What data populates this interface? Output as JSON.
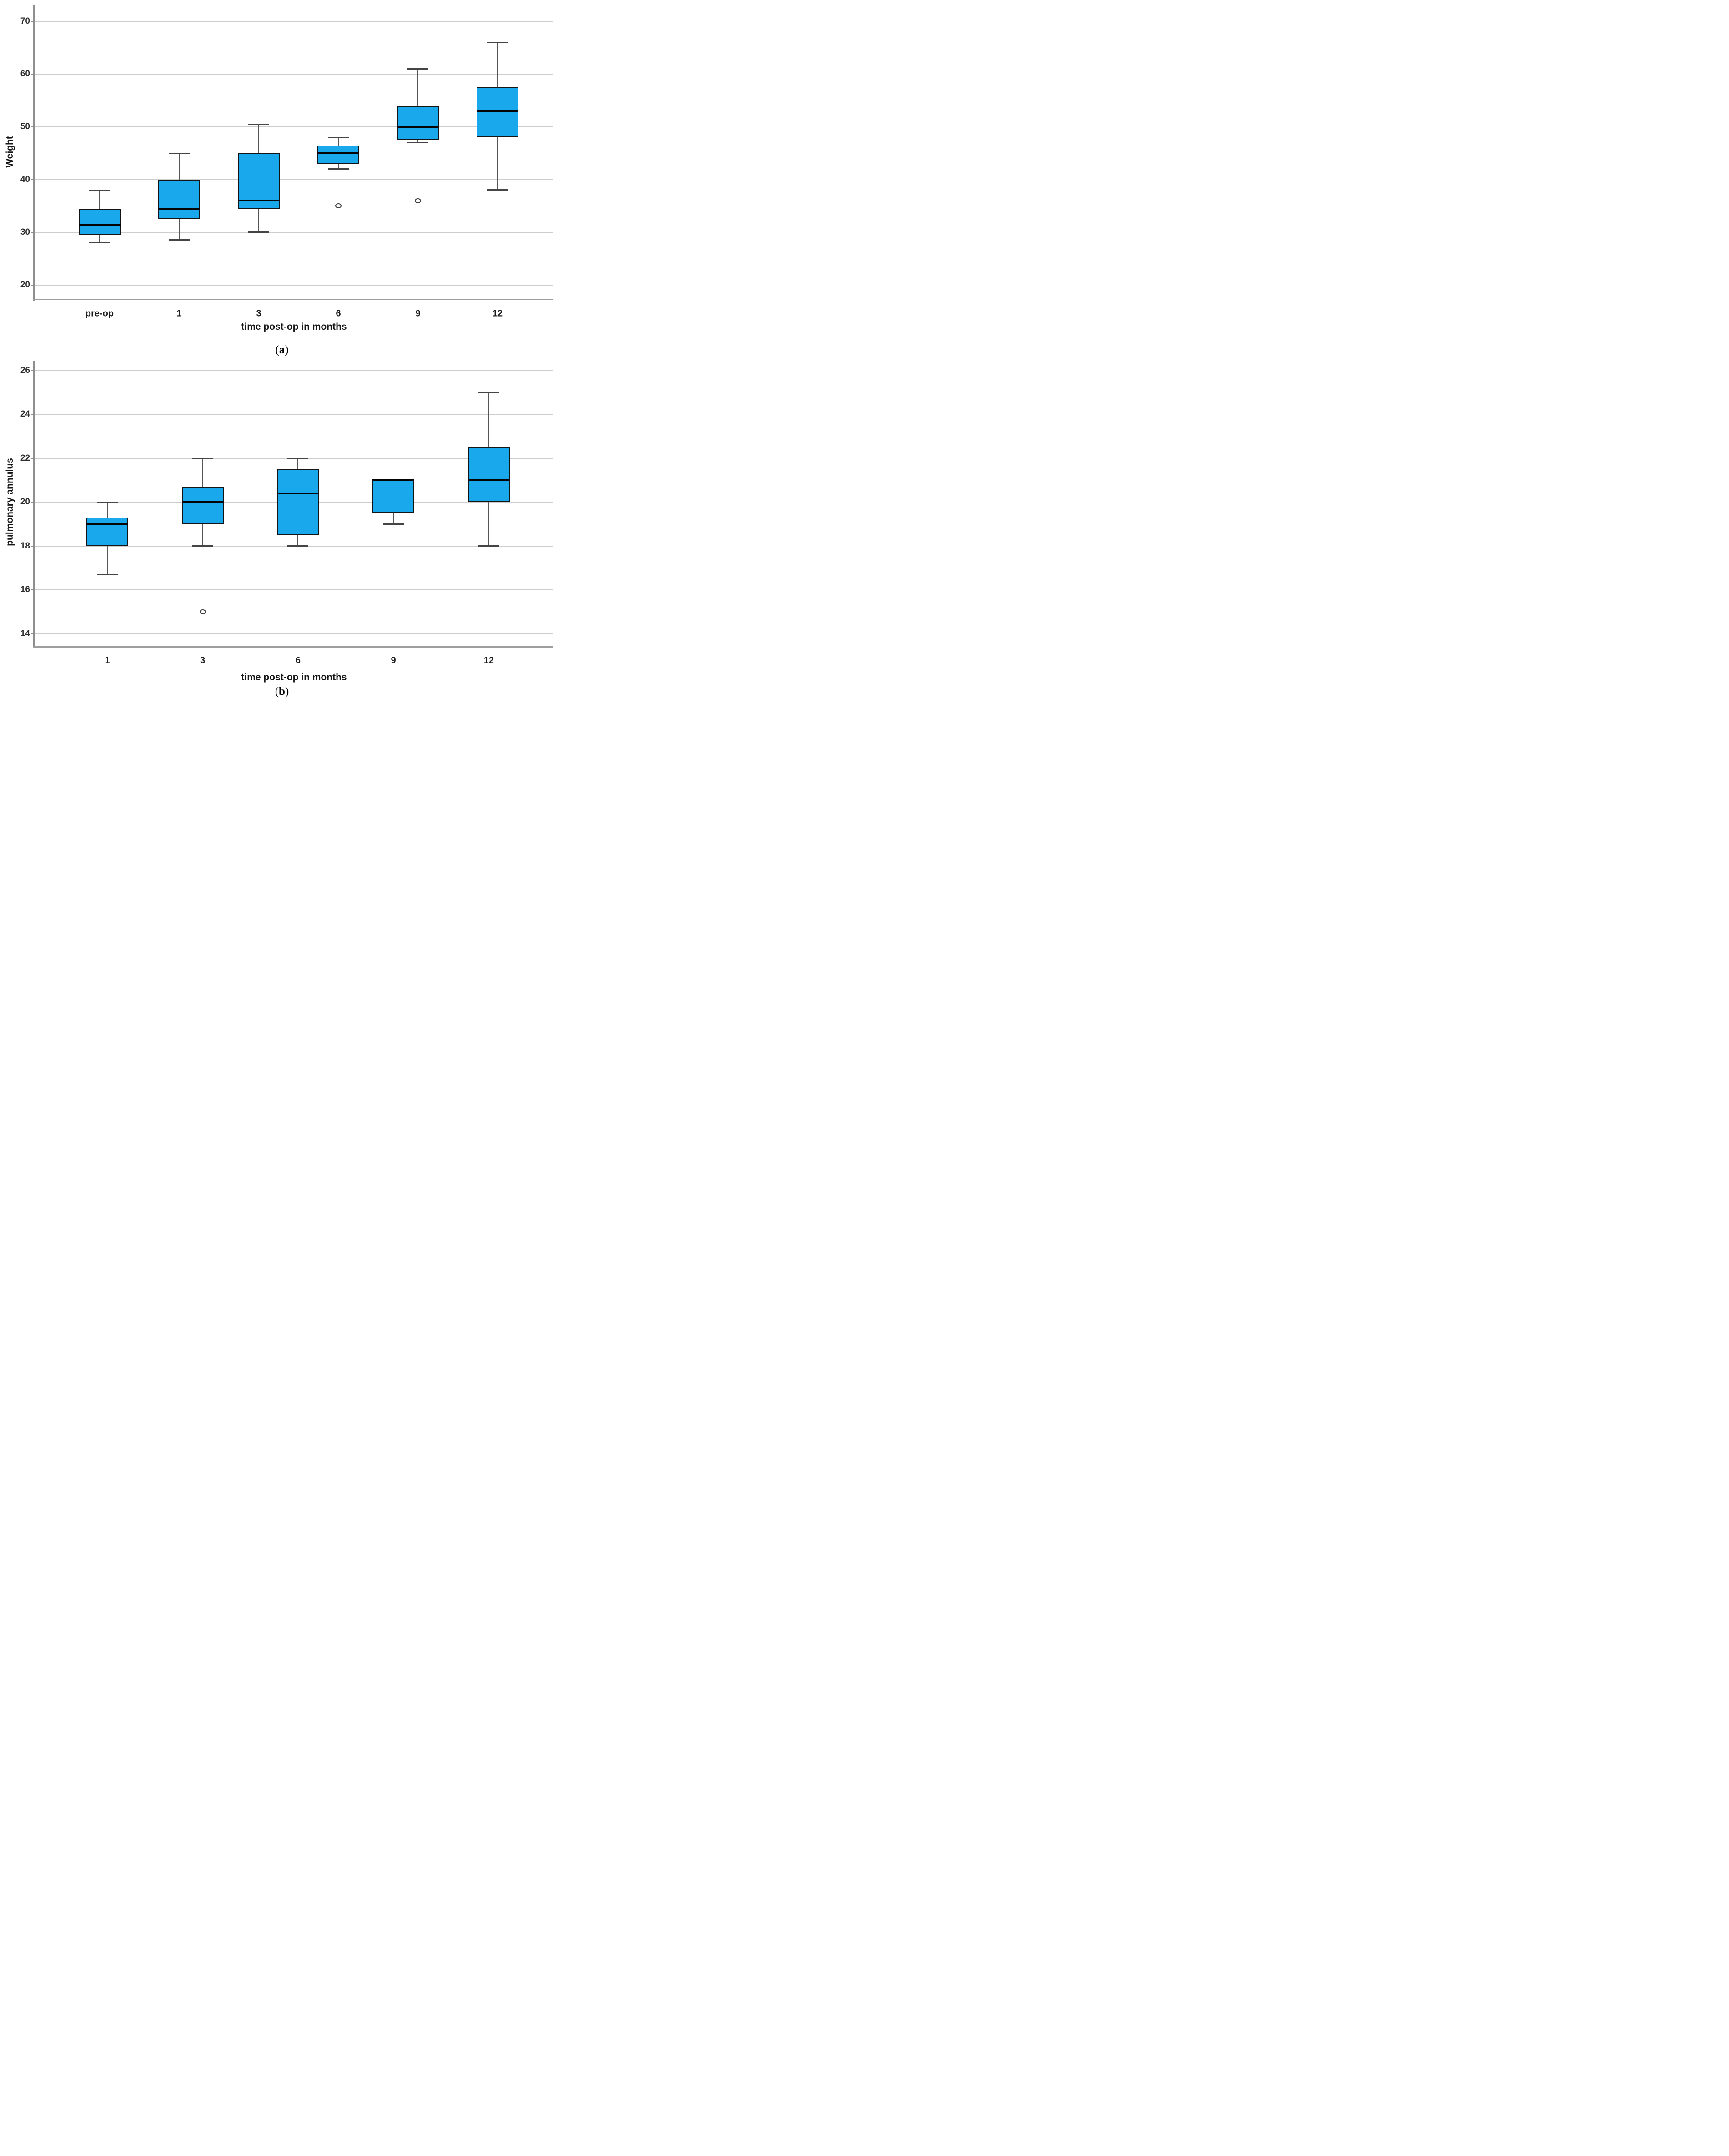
{
  "styles": {
    "box_fill": "#1aa8ec",
    "box_border": "#141414",
    "median_color": "#040404",
    "whisker_color": "#565656",
    "gridline_color": "#cdcdcd",
    "axis_color": "#8e8e8e"
  },
  "chart_data": [
    {
      "id": "a",
      "type": "boxplot",
      "ylabel": "Weight",
      "xlabel": "time post-op in months",
      "caption": {
        "open": "(",
        "letter": "a",
        "close": ")"
      },
      "yticks": [
        20,
        30,
        40,
        50,
        60,
        70
      ],
      "ylim_bottom": 17.4,
      "ylim_top": 73.2,
      "grid": true,
      "categories": [
        "pre-op",
        "1",
        "3",
        "6",
        "9",
        "12"
      ],
      "boxes": [
        {
          "category": "pre-op",
          "min": 28,
          "q1": 29.5,
          "median": 31.5,
          "q3": 34.5,
          "max": 38,
          "outliers": []
        },
        {
          "category": "1",
          "min": 28.5,
          "q1": 32.5,
          "median": 34.5,
          "q3": 40,
          "max": 45,
          "outliers": []
        },
        {
          "category": "3",
          "min": 30,
          "q1": 34.5,
          "median": 36,
          "q3": 45,
          "max": 50.5,
          "outliers": []
        },
        {
          "category": "6",
          "min": 42,
          "q1": 43,
          "median": 45,
          "q3": 46.5,
          "max": 48,
          "outliers": [
            35
          ]
        },
        {
          "category": "9",
          "min": 47,
          "q1": 47.5,
          "median": 50,
          "q3": 54,
          "max": 61,
          "outliers": [
            36
          ]
        },
        {
          "category": "12",
          "min": 38,
          "q1": 48,
          "median": 53,
          "q3": 57.5,
          "max": 66,
          "outliers": []
        }
      ]
    },
    {
      "id": "b",
      "type": "boxplot",
      "ylabel": "pulmonary annulus",
      "xlabel": "time post-op in months",
      "caption": {
        "open": "(",
        "letter": "b",
        "close": ")"
      },
      "yticks": [
        14,
        16,
        18,
        20,
        22,
        24,
        26
      ],
      "ylim_bottom": 13.44,
      "ylim_top": 26.45,
      "grid": true,
      "categories": [
        "1",
        "3",
        "6",
        "9",
        "12"
      ],
      "boxes": [
        {
          "category": "1",
          "min": 16.7,
          "q1": 18,
          "median": 19,
          "q3": 19.3,
          "max": 20,
          "outliers": []
        },
        {
          "category": "3",
          "min": 18,
          "q1": 19,
          "median": 20,
          "q3": 20.7,
          "max": 22,
          "outliers": [
            15
          ]
        },
        {
          "category": "6",
          "min": 18,
          "q1": 18.5,
          "median": 20.4,
          "q3": 21.5,
          "max": 22,
          "outliers": []
        },
        {
          "category": "9",
          "min": 19,
          "q1": 19.5,
          "median": 21,
          "q3": 21,
          "max": 21,
          "outliers": []
        },
        {
          "category": "12",
          "min": 18,
          "q1": 20,
          "median": 21,
          "q3": 22.5,
          "max": 25,
          "outliers": []
        }
      ]
    }
  ]
}
